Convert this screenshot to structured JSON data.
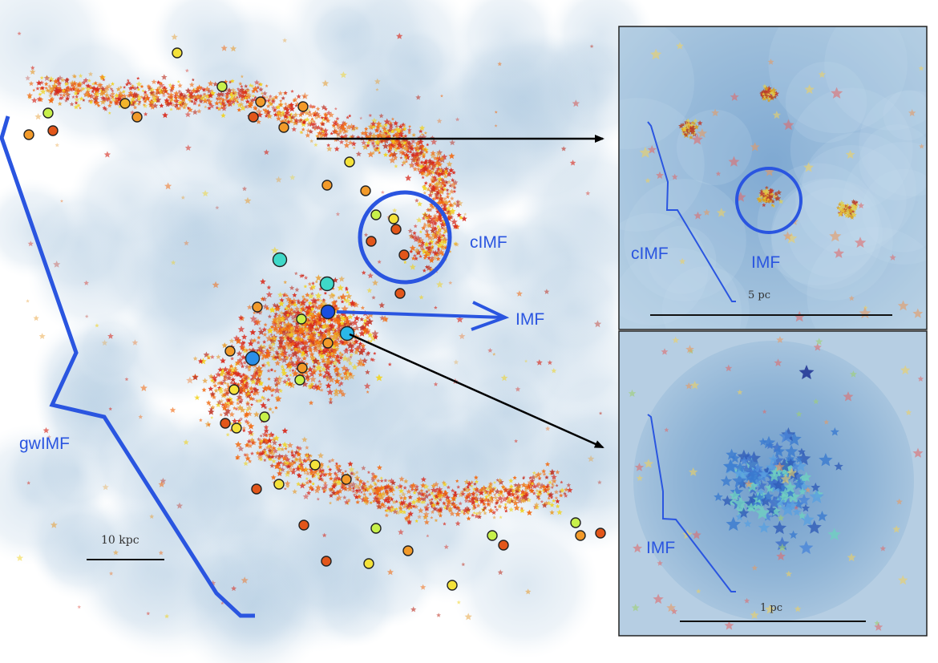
{
  "labels": {
    "gwimf": "gwIMF",
    "cimf_main": "cIMF",
    "imf_main": "IMF",
    "cimf_inset": "cIMF",
    "imf_inset_top": "IMF",
    "imf_inset_bottom": "IMF"
  },
  "scales": {
    "galaxy": "10 kpc",
    "inset_top": "5 pc",
    "inset_bottom": "1 pc"
  },
  "colors": {
    "accent": "#2a55e0",
    "halo": "#b7cfe2",
    "star_red": "#d8281a",
    "star_orange": "#f26a10",
    "star_yellow": "#f2d21c",
    "star_blue": "#3f6fc9"
  }
}
